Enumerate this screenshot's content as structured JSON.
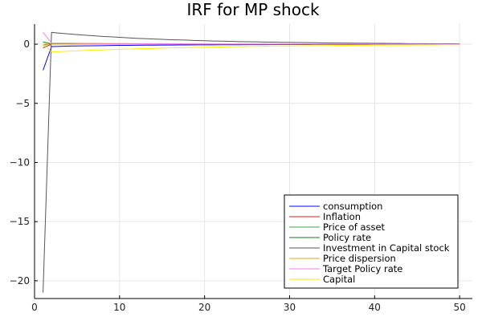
{
  "chart_data": {
    "type": "line",
    "title": "IRF for MP shock",
    "xlabel": "",
    "ylabel": "",
    "xlim": [
      0,
      51.5
    ],
    "ylim": [
      -21.5,
      1.7
    ],
    "xticks": [
      0,
      10,
      20,
      30,
      40,
      50
    ],
    "yticks": [
      0,
      -5,
      -10,
      -15,
      -20
    ],
    "grid": true,
    "legend_position": "bottom-right",
    "x": [
      1,
      2,
      3,
      4,
      5,
      6,
      7,
      8,
      9,
      10,
      11,
      12,
      13,
      14,
      15,
      16,
      17,
      18,
      19,
      20,
      21,
      22,
      23,
      24,
      25,
      26,
      27,
      28,
      29,
      30,
      31,
      32,
      33,
      34,
      35,
      36,
      37,
      38,
      39,
      40,
      41,
      42,
      43,
      44,
      45,
      46,
      47,
      48,
      49,
      50
    ],
    "series": [
      {
        "name": "consumption",
        "color": "#0000ff",
        "values": [
          -2.2,
          -0.2,
          -0.18,
          -0.16,
          -0.15,
          -0.14,
          -0.13,
          -0.12,
          -0.11,
          -0.1,
          -0.095,
          -0.09,
          -0.085,
          -0.08,
          -0.075,
          -0.07,
          -0.066,
          -0.062,
          -0.058,
          -0.055,
          -0.052,
          -0.049,
          -0.046,
          -0.043,
          -0.041,
          -0.038,
          -0.036,
          -0.034,
          -0.032,
          -0.03,
          -0.028,
          -0.027,
          -0.025,
          -0.024,
          -0.022,
          -0.021,
          -0.02,
          -0.019,
          -0.018,
          -0.017,
          -0.016,
          -0.015,
          -0.014,
          -0.013,
          -0.012,
          -0.011,
          -0.011,
          -0.01,
          -0.01,
          -0.009
        ]
      },
      {
        "name": "Inflation",
        "color": "#e31a1c",
        "values": [
          -0.3,
          0.0,
          0.0,
          0.0,
          0.0,
          0.0,
          0.0,
          0.0,
          0.0,
          0.0,
          0.0,
          0.0,
          0.0,
          0.0,
          0.0,
          0.0,
          0.0,
          0.0,
          0.0,
          0.0,
          0.0,
          0.0,
          0.0,
          0.0,
          0.0,
          0.0,
          0.0,
          0.0,
          0.0,
          0.0,
          0.0,
          0.0,
          0.0,
          0.0,
          0.0,
          0.0,
          0.0,
          0.0,
          0.0,
          0.0,
          0.0,
          0.0,
          0.0,
          0.0,
          0.0,
          0.0,
          0.0,
          0.0,
          0.0,
          0.0
        ]
      },
      {
        "name": "Price of asset",
        "color": "#3fa53f",
        "values": [
          -0.1,
          0.05,
          0.045,
          0.04,
          0.036,
          0.033,
          0.03,
          0.027,
          0.025,
          0.022,
          0.02,
          0.018,
          0.017,
          0.015,
          0.014,
          0.012,
          0.011,
          0.01,
          0.009,
          0.008,
          0.008,
          0.007,
          0.006,
          0.006,
          0.005,
          0.005,
          0.004,
          0.004,
          0.004,
          0.003,
          0.003,
          0.003,
          0.002,
          0.002,
          0.002,
          0.002,
          0.002,
          0.001,
          0.001,
          0.001,
          0.001,
          0.001,
          0.001,
          0.001,
          0.001,
          0.001,
          0.0,
          0.0,
          0.0,
          0.0
        ]
      },
      {
        "name": "Policy rate",
        "color": "#1a7f1a",
        "values": [
          0.2,
          0.02,
          0.018,
          0.016,
          0.014,
          0.013,
          0.012,
          0.011,
          0.01,
          0.009,
          0.008,
          0.007,
          0.007,
          0.006,
          0.005,
          0.005,
          0.004,
          0.004,
          0.004,
          0.003,
          0.003,
          0.003,
          0.002,
          0.002,
          0.002,
          0.002,
          0.002,
          0.001,
          0.001,
          0.001,
          0.001,
          0.001,
          0.001,
          0.001,
          0.001,
          0.001,
          0.0,
          0.0,
          0.0,
          0.0,
          0.0,
          0.0,
          0.0,
          0.0,
          0.0,
          0.0,
          0.0,
          0.0,
          0.0,
          0.0
        ]
      },
      {
        "name": "Investment in Capital stock",
        "color": "#555555",
        "values": [
          -21.0,
          1.0,
          0.93,
          0.87,
          0.81,
          0.76,
          0.71,
          0.66,
          0.62,
          0.58,
          0.54,
          0.5,
          0.47,
          0.44,
          0.41,
          0.38,
          0.36,
          0.34,
          0.31,
          0.29,
          0.27,
          0.26,
          0.24,
          0.22,
          0.21,
          0.2,
          0.18,
          0.17,
          0.16,
          0.15,
          0.14,
          0.13,
          0.12,
          0.11,
          0.1,
          0.1,
          0.09,
          0.08,
          0.08,
          0.07,
          0.07,
          0.06,
          0.06,
          0.05,
          0.05,
          0.05,
          0.04,
          0.04,
          0.04,
          0.03
        ]
      },
      {
        "name": "Price dispersion",
        "color": "#e8a317",
        "values": [
          0.0,
          0.0,
          0.0,
          0.0,
          0.0,
          0.0,
          0.0,
          0.0,
          0.0,
          0.0,
          0.0,
          0.0,
          0.0,
          0.0,
          0.0,
          0.0,
          0.0,
          0.0,
          0.0,
          0.0,
          0.0,
          0.0,
          0.0,
          0.0,
          0.0,
          0.0,
          0.0,
          0.0,
          0.0,
          0.0,
          0.0,
          0.0,
          0.0,
          0.0,
          0.0,
          0.0,
          0.0,
          0.0,
          0.0,
          0.0,
          0.0,
          0.0,
          0.0,
          0.0,
          0.0,
          0.0,
          0.0,
          0.0,
          0.0,
          0.0
        ]
      },
      {
        "name": "Target Policy rate",
        "color": "#ee82ee",
        "values": [
          1.0,
          0.1,
          0.09,
          0.085,
          0.08,
          0.075,
          0.07,
          0.065,
          0.06,
          0.056,
          0.052,
          0.049,
          0.046,
          0.043,
          0.04,
          0.037,
          0.035,
          0.033,
          0.031,
          0.029,
          0.027,
          0.025,
          0.024,
          0.022,
          0.021,
          0.02,
          0.019,
          0.018,
          0.017,
          0.016,
          0.015,
          0.014,
          0.013,
          0.012,
          0.012,
          0.011,
          0.01,
          0.01,
          0.009,
          0.009,
          0.008,
          0.008,
          0.007,
          0.007,
          0.007,
          0.006,
          0.006,
          0.006,
          0.005,
          0.005
        ]
      },
      {
        "name": "Capital",
        "color": "#ffee00",
        "values": [
          0.0,
          -0.65,
          -0.62,
          -0.59,
          -0.56,
          -0.53,
          -0.5,
          -0.48,
          -0.45,
          -0.43,
          -0.41,
          -0.39,
          -0.37,
          -0.35,
          -0.33,
          -0.31,
          -0.3,
          -0.28,
          -0.27,
          -0.25,
          -0.24,
          -0.23,
          -0.21,
          -0.2,
          -0.19,
          -0.18,
          -0.17,
          -0.16,
          -0.15,
          -0.15,
          -0.14,
          -0.13,
          -0.12,
          -0.12,
          -0.11,
          -0.1,
          -0.1,
          -0.09,
          -0.09,
          -0.08,
          -0.08,
          -0.07,
          -0.07,
          -0.07,
          -0.06,
          -0.06,
          -0.06,
          -0.05,
          -0.05,
          -0.05
        ]
      }
    ]
  }
}
